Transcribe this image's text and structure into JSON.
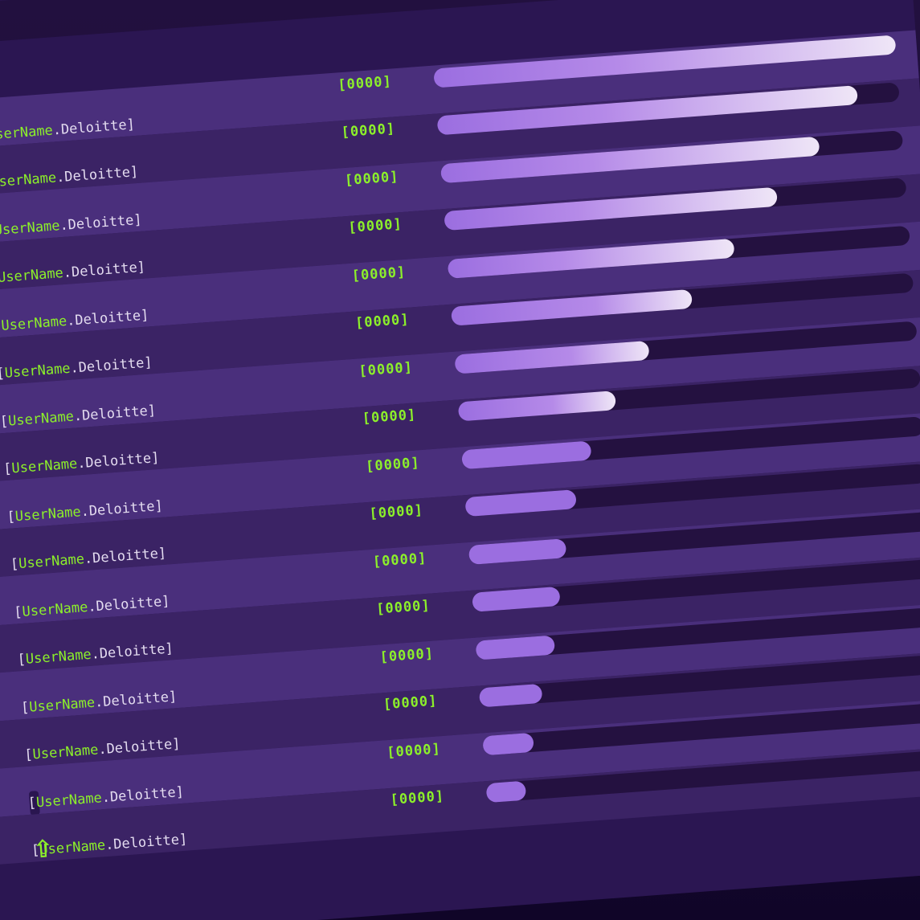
{
  "leaderboard": {
    "rows": [
      {
        "label_open": "[",
        "user": "UserName",
        "label_rest": ".Deloitte]",
        "score": "[0000]",
        "progress": 1.0,
        "icon": ""
      },
      {
        "label_open": "[",
        "user": "UserName",
        "label_rest": ".Deloitte]",
        "score": "[0000]",
        "progress": 0.91,
        "icon": ""
      },
      {
        "label_open": "[",
        "user": "UserName",
        "label_rest": ".Deloitte]",
        "score": "[0000]",
        "progress": 0.82,
        "icon": ""
      },
      {
        "label_open": "[",
        "user": "UserName",
        "label_rest": ".Deloitte]",
        "score": "[0000]",
        "progress": 0.72,
        "icon": ""
      },
      {
        "label_open": "[",
        "user": "UserName",
        "label_rest": ".Deloitte]",
        "score": "[0000]",
        "progress": 0.62,
        "icon": ""
      },
      {
        "label_open": "[",
        "user": "UserName",
        "label_rest": ".Deloitte]",
        "score": "[0000]",
        "progress": 0.52,
        "icon": ""
      },
      {
        "label_open": "[",
        "user": "UserName",
        "label_rest": ".Deloitte]",
        "score": "[0000]",
        "progress": 0.42,
        "icon": ""
      },
      {
        "label_open": "[",
        "user": "UserName",
        "label_rest": ".Deloitte]",
        "score": "[0000]",
        "progress": 0.34,
        "icon": ""
      },
      {
        "label_open": "[",
        "user": "UserName",
        "label_rest": ".Deloitte]",
        "score": "[0000]",
        "progress": 0.28,
        "icon": ""
      },
      {
        "label_open": "[",
        "user": "UserName",
        "label_rest": ".Deloitte]",
        "score": "[0000]",
        "progress": 0.24,
        "icon": ""
      },
      {
        "label_open": "[",
        "user": "UserName",
        "label_rest": ".Deloitte]",
        "score": "[0000]",
        "progress": 0.21,
        "icon": ""
      },
      {
        "label_open": "[",
        "user": "UserName",
        "label_rest": ".Deloitte]",
        "score": "[0000]",
        "progress": 0.19,
        "icon": ""
      },
      {
        "label_open": "[",
        "user": "UserName",
        "label_rest": ".Deloitte]",
        "score": "[0000]",
        "progress": 0.17,
        "icon": ""
      },
      {
        "label_open": "[",
        "user": "UserName",
        "label_rest": ".Deloitte]",
        "score": "[0000]",
        "progress": 0.135,
        "icon": ""
      },
      {
        "label_open": "[",
        "user": "UserName",
        "label_rest": ".Deloitte]",
        "score": "[0000]",
        "progress": 0.11,
        "icon": "edge-icon"
      },
      {
        "label_open": "[",
        "user": "UserName",
        "label_rest": ".Deloitte]",
        "score": "[0000]",
        "progress": 0.085,
        "icon": "arrow-up-icon"
      }
    ]
  },
  "colors": {
    "accent_green": "#8cf02a",
    "bar_start": "#9b6ee0",
    "bar_end": "#efe6f7",
    "row_light": "#4a2f7c",
    "row_dark": "#3b2365",
    "track": "#241140"
  }
}
